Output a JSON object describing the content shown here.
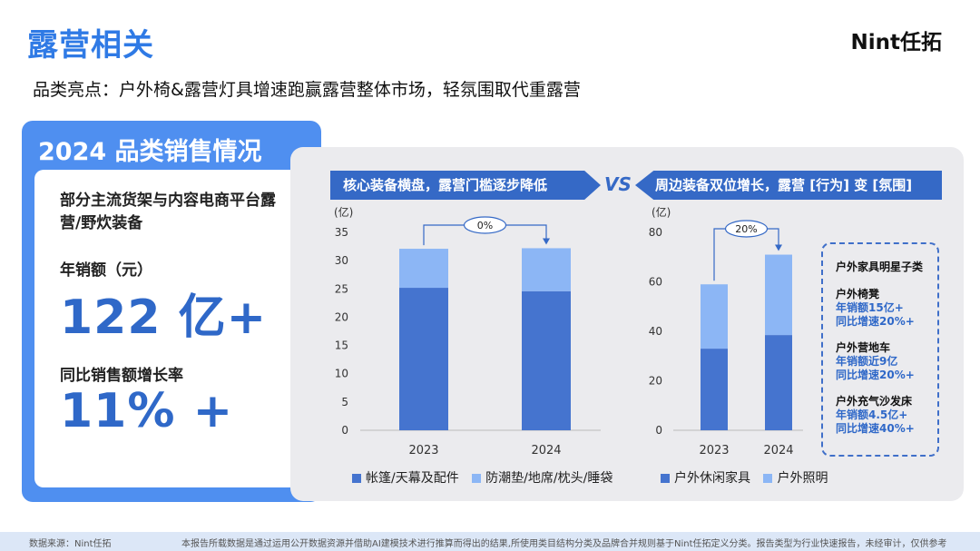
{
  "header": {
    "title": "露营相关",
    "logo": "Nint任拓",
    "subtitle": "品类亮点：户外椅&露营灯具增速跑赢露营整体市场，轻氛围取代重露营"
  },
  "summary": {
    "heading": "2024 品类销售情况",
    "scope": "部分主流货架与内容电商平台露营/野炊装备",
    "sales_label": "年销额（元）",
    "sales_value": "122 亿+",
    "growth_label": "同比销售额增长率",
    "growth_value": "11% +"
  },
  "vs_label": "VS",
  "star_box": {
    "title": "户外家具明星子类",
    "items": [
      {
        "name": "户外椅凳",
        "line1": "年销额15亿+",
        "line2": "同比增速20%+"
      },
      {
        "name": "户外营地车",
        "line1": "年销额近9亿",
        "line2": "同比增速20%+"
      },
      {
        "name": "户外充气沙发床",
        "line1": "年销额4.5亿+",
        "line2": "同比增速40%+"
      }
    ]
  },
  "colors": {
    "dark": "#4574cf",
    "light": "#8cb6f5",
    "accent": "#2f7ae5"
  },
  "chart_data": [
    {
      "type": "bar",
      "stacked": true,
      "title": "核心装备横盘，露营门槛逐步降低",
      "unit_label": "(亿)",
      "categories": [
        "2023",
        "2024"
      ],
      "series": [
        {
          "name": "帐篷/天幕及配件",
          "values": [
            25.2,
            24.6
          ]
        },
        {
          "name": "防潮垫/地席/枕头/睡袋",
          "values": [
            6.9,
            7.6
          ]
        }
      ],
      "ylim": [
        0,
        35
      ],
      "yticks": [
        0,
        5,
        10,
        15,
        20,
        25,
        30,
        35
      ],
      "annotation": "0%",
      "legend": "bottom"
    },
    {
      "type": "bar",
      "stacked": true,
      "title": "周边装备双位增长，露营 [行为] 变 [氛围]",
      "unit_label": "(亿)",
      "categories": [
        "2023",
        "2024"
      ],
      "series": [
        {
          "name": "户外休闲家具",
          "values": [
            33,
            38.5
          ]
        },
        {
          "name": "户外照明",
          "values": [
            26,
            32.5
          ]
        }
      ],
      "ylim": [
        0,
        80
      ],
      "yticks": [
        0,
        20,
        40,
        60,
        80
      ],
      "annotation": "20%",
      "legend": "bottom"
    }
  ],
  "footer": {
    "source": "数据来源：Nint任拓",
    "note": "本报告所载数据是通过运用公开数据资源并借助AI建模技术进行推算而得出的结果,所使用类目结构分类及品牌合并规则基于Nint任拓定义分类。报告类型为行业快速报告，未经审计，仅供参考"
  }
}
